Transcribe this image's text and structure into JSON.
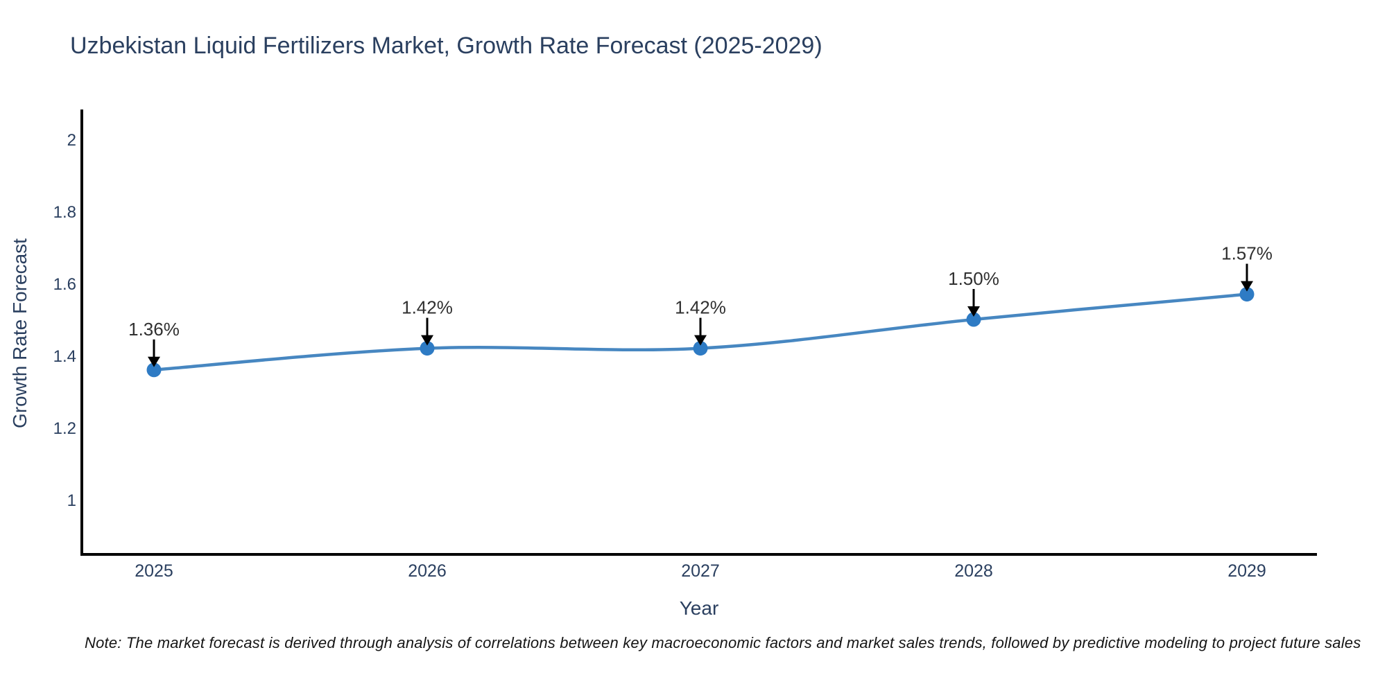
{
  "page": {
    "background_color": "#ffffff"
  },
  "note": "Note: The market forecast is derived through analysis of correlations between key macroeconomic factors and market sales trends, followed by predictive modeling to project future sales",
  "chart_data": {
    "type": "line",
    "title": "Uzbekistan Liquid Fertilizers Market, Growth Rate Forecast (2025-2029)",
    "xlabel": "Year",
    "ylabel": "Growth Rate Forecast",
    "categories": [
      "2025",
      "2026",
      "2027",
      "2028",
      "2029"
    ],
    "x": [
      2025,
      2026,
      2027,
      2028,
      2029
    ],
    "values": [
      1.36,
      1.42,
      1.42,
      1.5,
      1.57
    ],
    "point_labels": [
      "1.36%",
      "1.42%",
      "1.42%",
      "1.50%",
      "1.57%"
    ],
    "yticks": [
      1,
      1.2,
      1.4,
      1.6,
      1.8,
      2
    ],
    "ytick_labels": [
      "1",
      "1.2",
      "1.4",
      "1.6",
      "1.8",
      "2"
    ],
    "ylim": [
      0.84,
      2.08
    ],
    "grid": false,
    "legend": "none",
    "line_shape": "spline",
    "colors": {
      "line": "#4787c1",
      "marker": "#2e7bc4",
      "axis": "#000000",
      "text": "#2a3f5f",
      "annotation_text": "#303030",
      "arrow": "#000000"
    }
  }
}
